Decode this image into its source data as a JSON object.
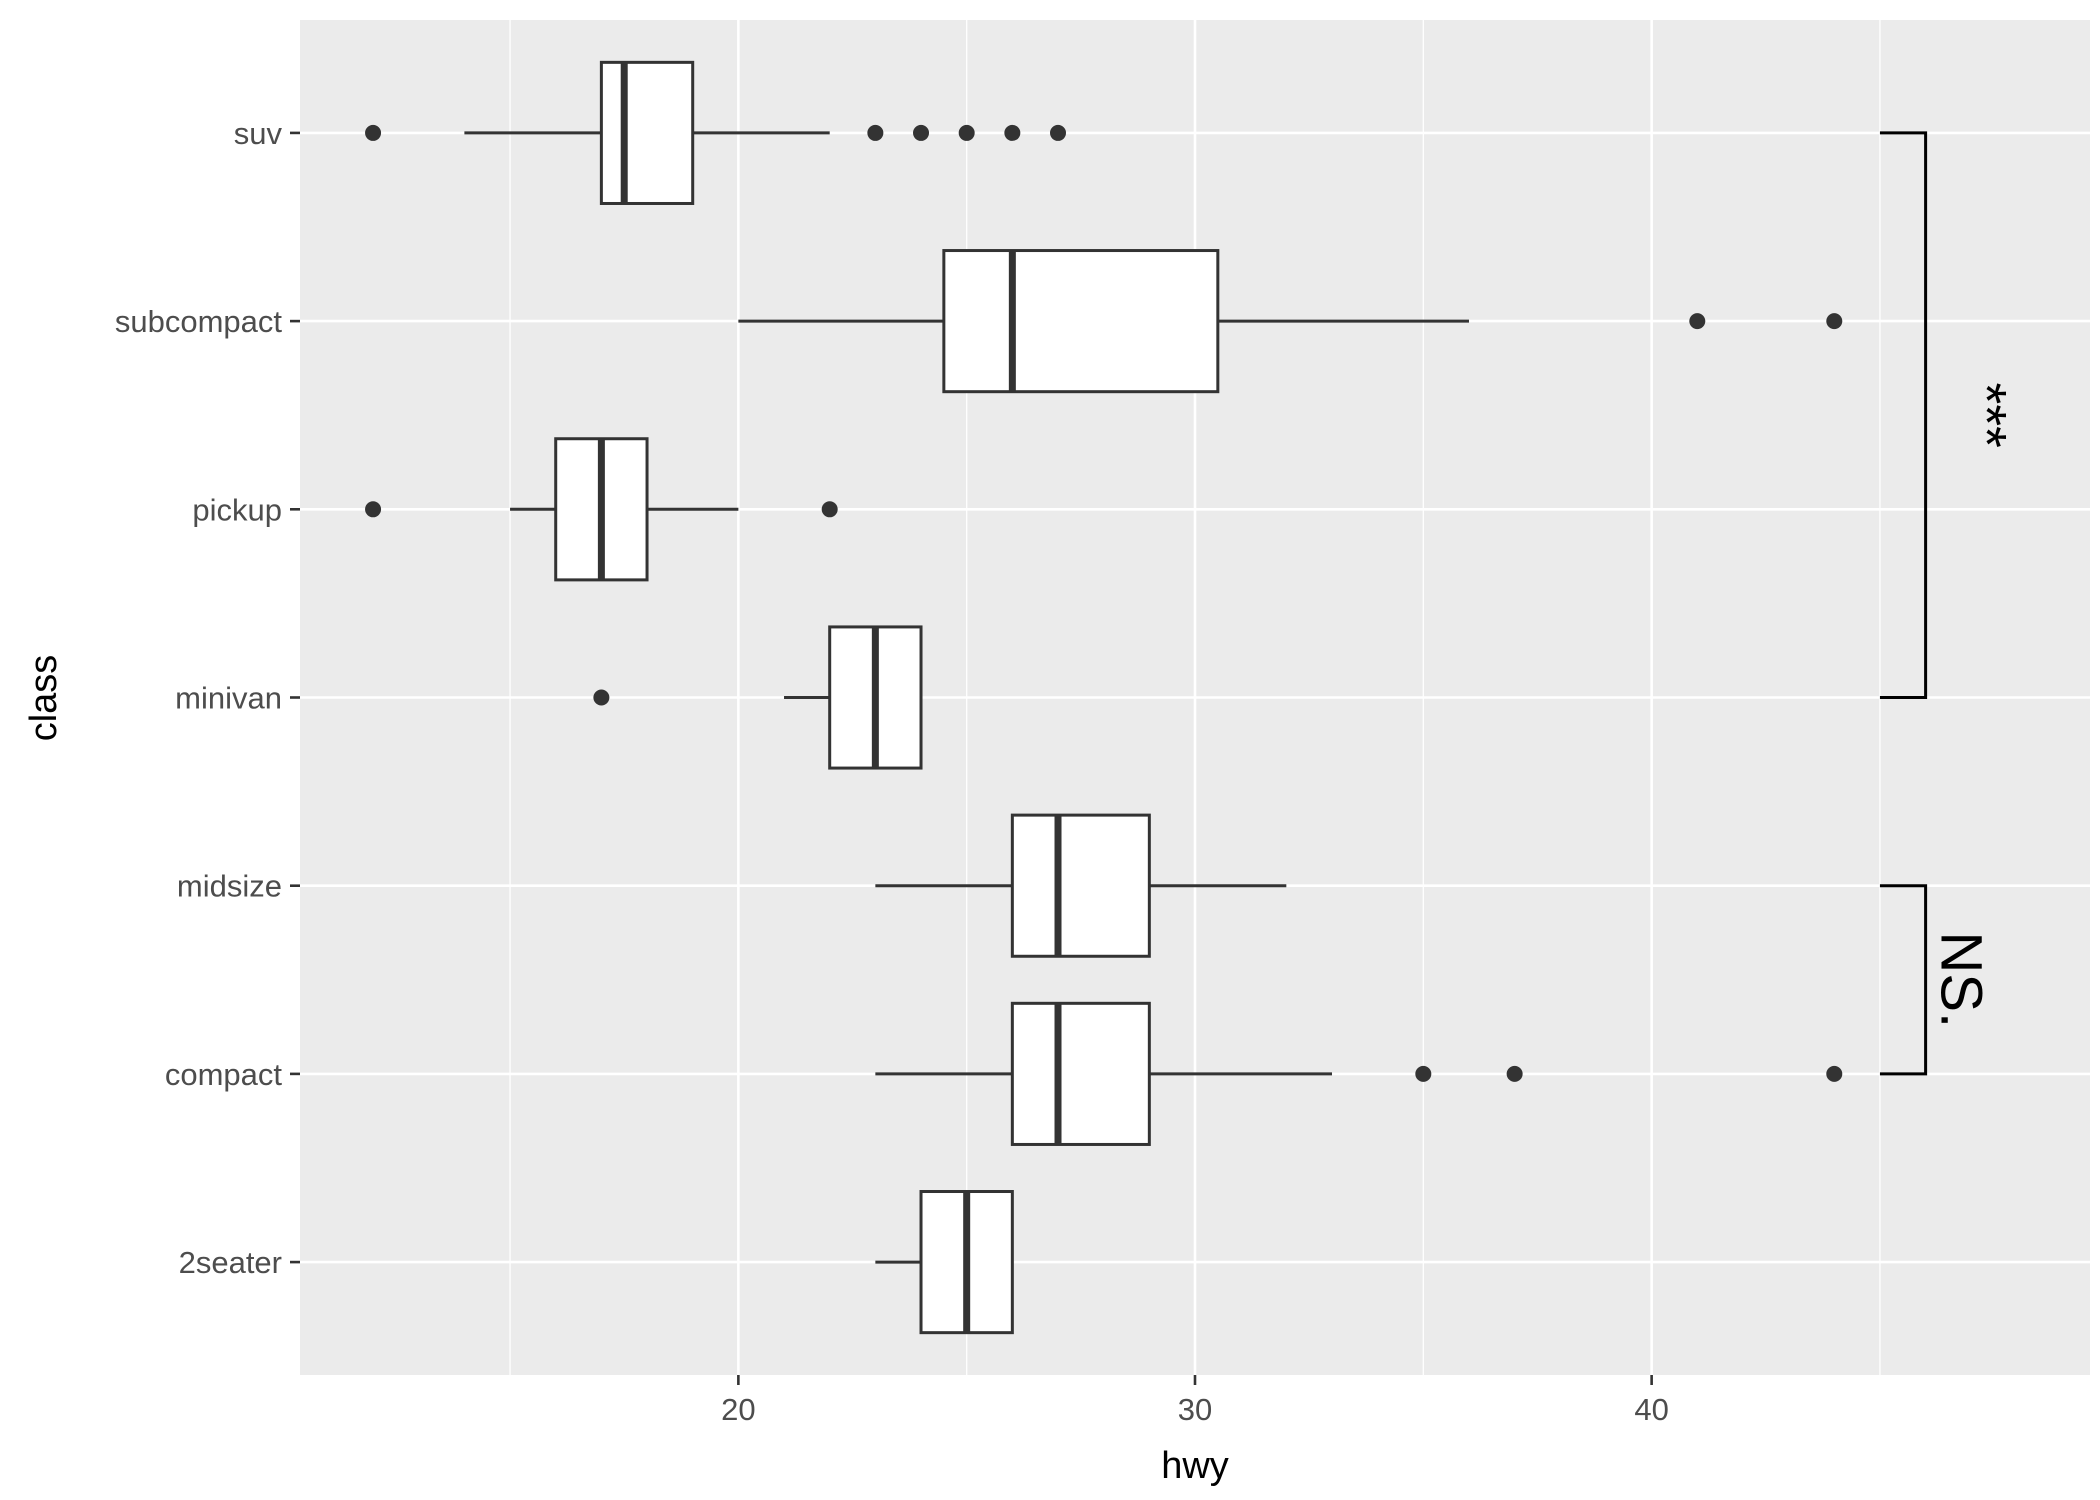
{
  "chart_data": {
    "type": "boxplot",
    "orientation": "horizontal",
    "title": "",
    "xlabel": "hwy",
    "ylabel": "class",
    "xlim": [
      10.4,
      49.6
    ],
    "x_ticks": [
      20,
      30,
      40
    ],
    "categories": [
      "suv",
      "subcompact",
      "pickup",
      "minivan",
      "midsize",
      "compact",
      "2seater"
    ],
    "grid": true,
    "boxes": [
      {
        "category": "suv",
        "whisker_low": 14,
        "q1": 17,
        "median": 17.5,
        "q3": 19,
        "whisker_high": 22,
        "outliers": [
          12,
          23,
          24,
          25,
          26,
          27
        ]
      },
      {
        "category": "subcompact",
        "whisker_low": 20,
        "q1": 24.5,
        "median": 26,
        "q3": 30.5,
        "whisker_high": 36,
        "outliers": [
          41,
          44
        ]
      },
      {
        "category": "pickup",
        "whisker_low": 15,
        "q1": 16,
        "median": 17,
        "q3": 18,
        "whisker_high": 20,
        "outliers": [
          12,
          22
        ]
      },
      {
        "category": "minivan",
        "whisker_low": 21,
        "q1": 22,
        "median": 23,
        "q3": 24,
        "whisker_high": 24,
        "outliers": [
          17
        ]
      },
      {
        "category": "midsize",
        "whisker_low": 23,
        "q1": 26,
        "median": 27,
        "q3": 29,
        "whisker_high": 32,
        "outliers": []
      },
      {
        "category": "compact",
        "whisker_low": 23,
        "q1": 26,
        "median": 27,
        "q3": 29,
        "whisker_high": 33,
        "outliers": [
          35,
          37,
          44
        ]
      },
      {
        "category": "2seater",
        "whisker_low": 23,
        "q1": 24,
        "median": 25,
        "q3": 26,
        "whisker_high": 26,
        "outliers": []
      }
    ],
    "significance": [
      {
        "from": "minivan",
        "to": "suv",
        "label": "***"
      },
      {
        "from": "compact",
        "to": "midsize",
        "label": "NS."
      }
    ],
    "colors": {
      "panel_background": "#ebebeb",
      "grid": "#ffffff",
      "box_fill": "#ffffff",
      "box_stroke": "#333333",
      "axis_text": "#4d4d4d",
      "axis_title": "#000000"
    }
  }
}
